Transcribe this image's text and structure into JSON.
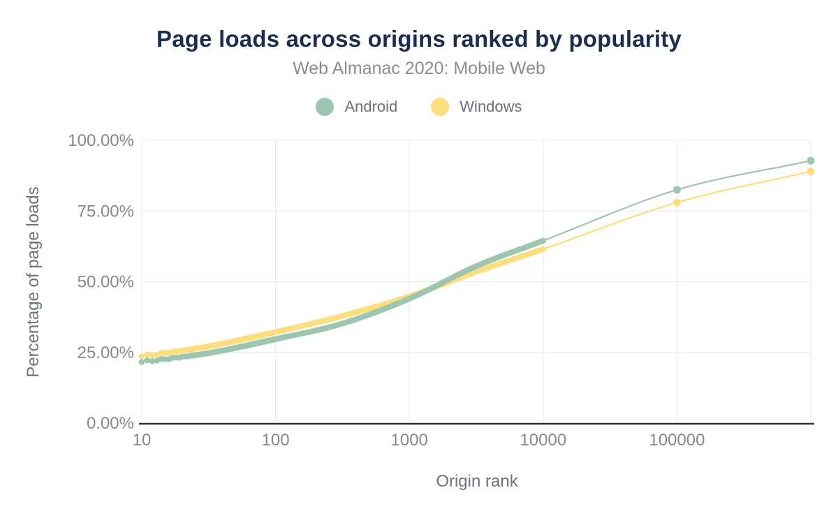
{
  "header": {
    "title": "Page loads across origins ranked by popularity",
    "subtitle": "Web Almanac 2020: Mobile Web"
  },
  "legend": [
    {
      "label": "Android",
      "color": "#9ec5b0"
    },
    {
      "label": "Windows",
      "color": "#fbde7d"
    }
  ],
  "colors": {
    "title": "#1d2d4e",
    "subtitle": "#8a8c8f",
    "axis_title": "#6d737a",
    "tick_label": "#85898e",
    "gridline": "#e8e8e8",
    "axis_line": "#2f3339",
    "background": "#ffffff",
    "android": "#9ec5b0",
    "windows": "#fbde7d"
  },
  "chart_data": {
    "type": "line",
    "title": "Page loads across origins ranked by popularity",
    "subtitle": "Web Almanac 2020: Mobile Web",
    "xlabel": "Origin rank",
    "ylabel": "Percentage of page loads",
    "x_scale": "log",
    "x_range": [
      10,
      1000000
    ],
    "ylim": [
      0,
      100
    ],
    "grid": "on",
    "legend_position": "top",
    "x_ticks": [
      {
        "value": 10,
        "label": "10"
      },
      {
        "value": 100,
        "label": "100"
      },
      {
        "value": 1000,
        "label": "1000"
      },
      {
        "value": 10000,
        "label": "10000"
      },
      {
        "value": 100000,
        "label": "100000"
      }
    ],
    "y_ticks": [
      {
        "value": 0,
        "label": "0.00%"
      },
      {
        "value": 25,
        "label": "25.00%"
      },
      {
        "value": 50,
        "label": "50.00%"
      },
      {
        "value": 75,
        "label": "75.00%"
      },
      {
        "value": 100,
        "label": "100.00%"
      }
    ],
    "dense_marker_max_x": 10000,
    "series": [
      {
        "name": "Android",
        "color": "#9ec5b0",
        "x": [
          10,
          32,
          100,
          316,
          1000,
          3162,
          10000,
          100000,
          1000000
        ],
        "y": [
          21.6,
          24.8,
          29.7,
          35.2,
          44.0,
          55.5,
          64.5,
          82.5,
          92.8
        ]
      },
      {
        "name": "Windows",
        "color": "#fbde7d",
        "x": [
          10,
          32,
          100,
          316,
          1000,
          3162,
          10000,
          100000,
          1000000
        ],
        "y": [
          23.6,
          27.2,
          32.2,
          37.9,
          44.8,
          53.5,
          61.5,
          78.0,
          89.0
        ]
      }
    ]
  }
}
